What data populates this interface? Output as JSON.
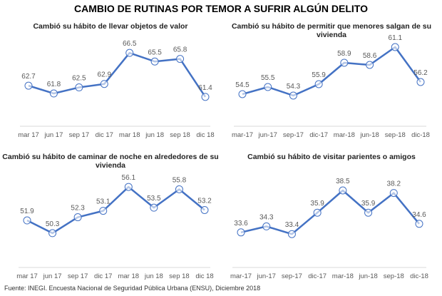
{
  "title": "CAMBIO DE RUTINAS POR TEMOR A SUFRIR ALGÚN DELITO",
  "source": "Fuente: INEGI. Encuesta Nacional de Seguridad Pública Urbana (ENSU), Diciembre 2018",
  "colors": {
    "line": "#4472c4",
    "labels": "#595959"
  },
  "chart_data": [
    {
      "type": "line",
      "title": "Cambió su hábito de llevar objetos de valor",
      "categories": [
        "mar 17",
        "jun 17",
        "sep 17",
        "dic 17",
        "mar 18",
        "jun 18",
        "sep 18",
        "dic 18"
      ],
      "values": [
        62.7,
        61.8,
        62.5,
        62.9,
        66.5,
        65.5,
        65.8,
        61.4
      ],
      "ylim": [
        58,
        68
      ],
      "grid": false,
      "legend": "none"
    },
    {
      "type": "line",
      "title": "Cambió su hábito de permitir que menores salgan de su vivienda",
      "categories": [
        "mar-17",
        "jun-17",
        "sep-17",
        "dic-17",
        "mar-18",
        "jun-18",
        "sep-18",
        "dic-18"
      ],
      "values": [
        54.5,
        55.5,
        54.3,
        55.9,
        58.9,
        58.6,
        61.1,
        56.2
      ],
      "ylim": [
        50,
        62
      ],
      "grid": false,
      "legend": "none"
    },
    {
      "type": "line",
      "title": "Cambió su hábito de caminar de noche en alrededores de su vivienda",
      "categories": [
        "mar 17",
        "jun 17",
        "sep 17",
        "dic 17",
        "mar 18",
        "jun 18",
        "sep 18",
        "dic 18"
      ],
      "values": [
        51.9,
        50.3,
        52.3,
        53.1,
        56.1,
        53.5,
        55.8,
        53.2
      ],
      "ylim": [
        46,
        57
      ],
      "grid": false,
      "legend": "none"
    },
    {
      "type": "line",
      "title": "Cambió su hábito de visitar parientes o amigos",
      "categories": [
        "mar-17",
        "jun-17",
        "sep-17",
        "dic-17",
        "mar-18",
        "jun-18",
        "sep-18",
        "dic-18"
      ],
      "values": [
        33.6,
        34.3,
        33.4,
        35.9,
        38.5,
        35.9,
        38.2,
        34.6
      ],
      "ylim": [
        29.5,
        39.5
      ],
      "grid": false,
      "legend": "none"
    }
  ]
}
